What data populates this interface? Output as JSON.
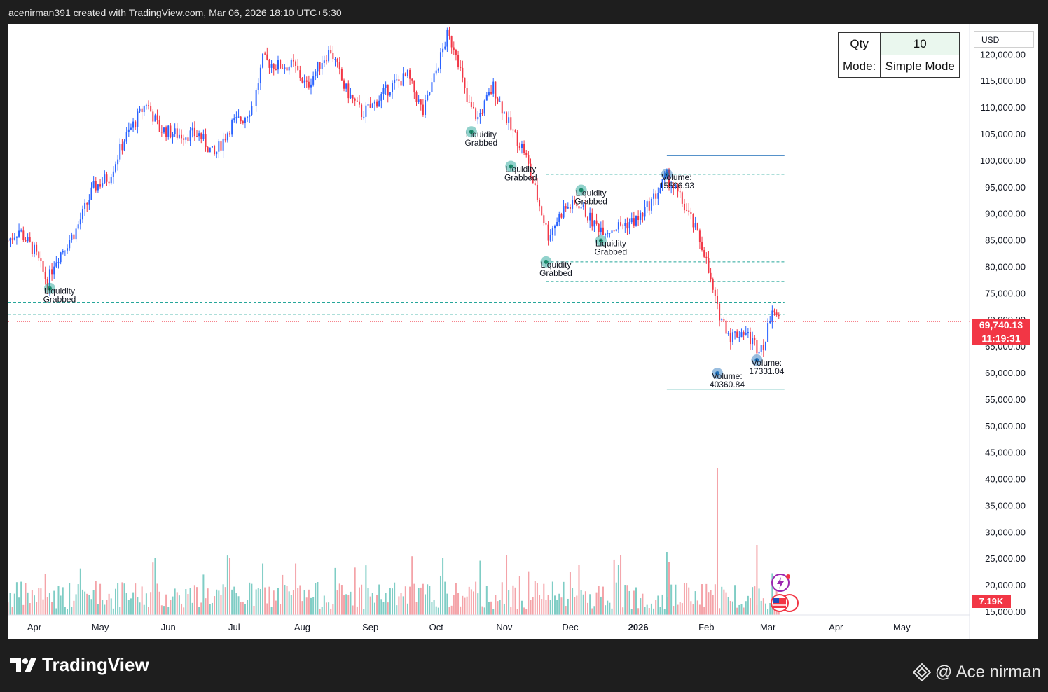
{
  "header": {
    "attribution": "acenirman391 created with TradingView.com, Mar 06, 2026 18:10 UTC+5:30"
  },
  "footer": {
    "brand": "TradingView",
    "watermark": "@ Ace nirman"
  },
  "order_panel": {
    "qty_label": "Qty",
    "qty_value": "10",
    "mode_label": "Mode:",
    "mode_value": "Simple Mode"
  },
  "currency": "USD",
  "last_price": {
    "price": "69,740.13",
    "countdown": "11:19:31"
  },
  "volume_last": "7.19K",
  "colors": {
    "up": "#2962ff",
    "down": "#f23645",
    "vol_up": "#7fcdc5",
    "vol_down": "#f4a3a8",
    "liquidity": "#26a69a",
    "level_line": "#1e6fb8"
  },
  "chart_data": {
    "type": "line",
    "title": "",
    "y_axis_ticks": [
      "120,000.00",
      "115,000.00",
      "110,000.00",
      "105,000.00",
      "100,000.00",
      "95,000.00",
      "90,000.00",
      "85,000.00",
      "80,000.00",
      "75,000.00",
      "70,000.00",
      "65,000.00",
      "60,000.00",
      "55,000.00",
      "50,000.00",
      "45,000.00",
      "40,000.00",
      "35,000.00",
      "30,000.00",
      "25,000.00",
      "20,000.00",
      "15,000.00"
    ],
    "ylim": [
      15000,
      124000
    ],
    "x_axis_ticks": [
      "Apr",
      "May",
      "Jun",
      "Jul",
      "Aug",
      "Sep",
      "Oct",
      "Nov",
      "Dec",
      "2026",
      "Feb",
      "Mar",
      "Apr",
      "May"
    ],
    "x_tick_dates": [
      "2025-04-01",
      "2025-05-01",
      "2025-06-01",
      "2025-07-01",
      "2025-08-01",
      "2025-09-01",
      "2025-10-01",
      "2025-11-01",
      "2025-12-01",
      "2026-01-01",
      "2026-02-01",
      "2026-03-01",
      "2026-04-01",
      "2026-05-01"
    ],
    "series": [
      {
        "x": [
          "2025-03-20",
          "2025-03-25",
          "2025-04-01",
          "2025-04-07",
          "2025-04-10",
          "2025-04-20",
          "2025-04-28",
          "2025-05-05",
          "2025-05-12",
          "2025-05-22",
          "2025-05-28",
          "2025-06-05",
          "2025-06-15",
          "2025-06-22",
          "2025-06-30",
          "2025-07-05",
          "2025-07-10",
          "2025-07-14",
          "2025-07-20",
          "2025-07-28",
          "2025-08-03",
          "2025-08-10",
          "2025-08-14",
          "2025-08-20",
          "2025-08-28",
          "2025-09-01",
          "2025-09-10",
          "2025-09-18",
          "2025-09-25",
          "2025-10-01",
          "2025-10-06",
          "2025-10-10",
          "2025-10-15",
          "2025-10-20",
          "2025-10-27",
          "2025-11-04",
          "2025-11-10",
          "2025-11-14",
          "2025-11-21",
          "2025-11-28",
          "2025-12-05",
          "2025-12-12",
          "2025-12-18",
          "2025-12-25",
          "2026-01-01",
          "2026-01-08",
          "2026-01-14",
          "2026-01-20",
          "2026-01-25",
          "2026-01-31",
          "2026-02-03",
          "2026-02-06",
          "2026-02-12",
          "2026-02-18",
          "2026-02-24",
          "2026-02-28",
          "2026-03-03",
          "2026-03-06"
        ],
        "y": [
          85000,
          87000,
          83000,
          77000,
          81000,
          87000,
          95000,
          97000,
          104000,
          111000,
          106000,
          105000,
          105000,
          101000,
          107000,
          108000,
          111000,
          119000,
          118000,
          118000,
          114000,
          119000,
          121000,
          114000,
          109000,
          110000,
          114000,
          116000,
          109000,
          117000,
          123500,
          121000,
          111000,
          108000,
          114000,
          106000,
          102000,
          96000,
          86000,
          91000,
          92000,
          88000,
          87000,
          88000,
          89000,
          93000,
          97000,
          93000,
          89000,
          83000,
          77000,
          72000,
          67000,
          68000,
          65000,
          66000,
          73000,
          69740
        ]
      }
    ],
    "volume_tallest": [
      {
        "date": "2026-02-06",
        "value": "40360.84"
      },
      {
        "date": "2026-01-14",
        "value": "15596.93"
      },
      {
        "date": "2026-02-24",
        "value": "17331.04"
      }
    ],
    "annotations": [
      {
        "text": "Liquidity Grabbed",
        "date": "2025-04-08",
        "price": 76000
      },
      {
        "text": "Liquidity Grabbed",
        "date": "2025-10-17",
        "price": 105500
      },
      {
        "text": "Liquidity Grabbed",
        "date": "2025-11-04",
        "price": 99000
      },
      {
        "text": "Liquidity Grabbed",
        "date": "2025-11-20",
        "price": 81000
      },
      {
        "text": "Liquidity Grabbed",
        "date": "2025-12-06",
        "price": 94500
      },
      {
        "text": "Liquidity Grabbed",
        "date": "2025-12-15",
        "price": 85000
      },
      {
        "text": "Volume: 15596.93",
        "date": "2026-01-14",
        "price": 97500
      },
      {
        "text": "Volume: 40360.84",
        "date": "2026-02-06",
        "price": 60000
      },
      {
        "text": "Volume: 17331.04",
        "date": "2026-02-24",
        "price": 62500
      }
    ],
    "levels": [
      101000,
      97500,
      81000,
      77300,
      73400,
      71100,
      57000
    ],
    "last_price_line": 69740
  }
}
